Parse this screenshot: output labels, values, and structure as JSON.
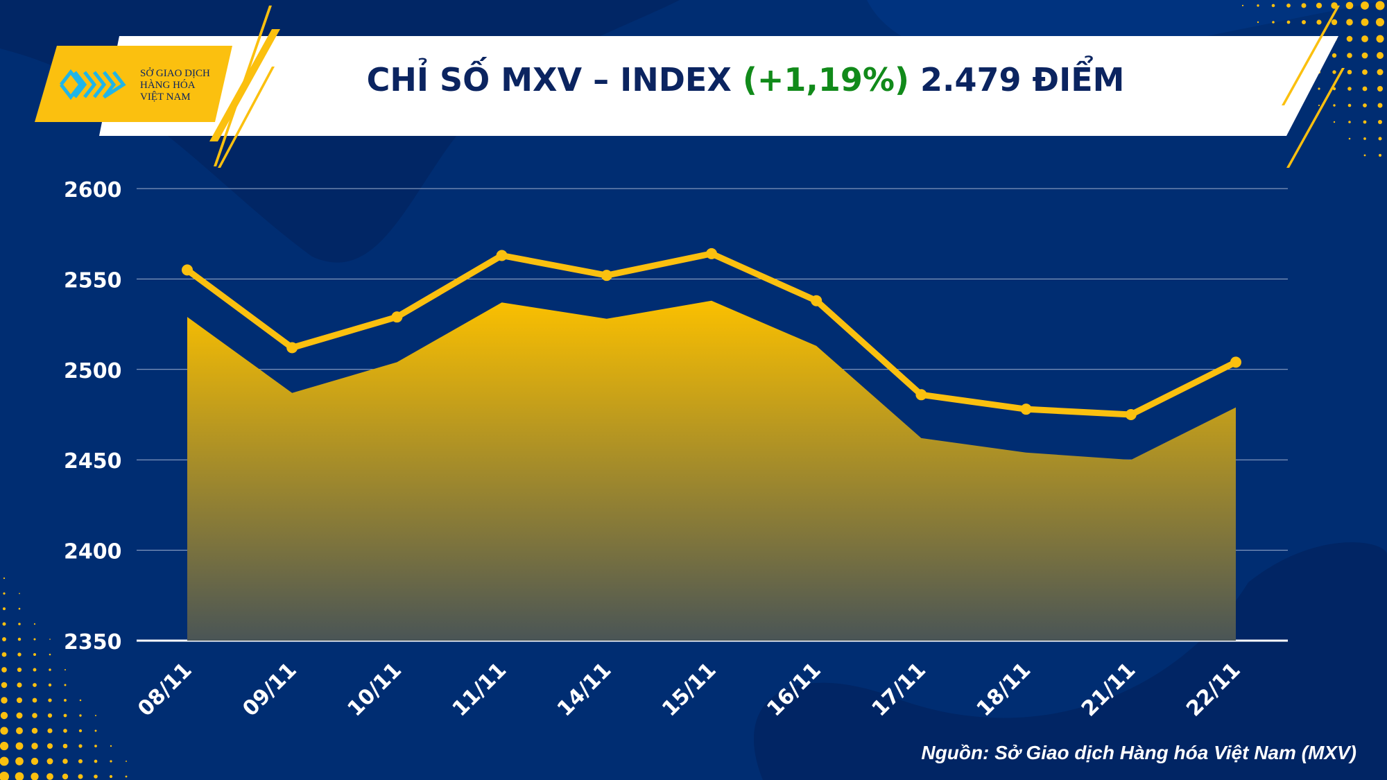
{
  "header": {
    "title_prefix": "CHỈ SỐ MXV – INDEX",
    "title_change": "(+1,19%)",
    "title_suffix": "2.479 ĐIỂM",
    "logo_lines": [
      "SỞ GIAO DỊCH",
      "HÀNG HÓA",
      "VIỆT NAM"
    ]
  },
  "source": "Nguồn: Sở Giao dịch Hàng hóa Việt Nam (MXV)",
  "colors": {
    "background": "#002d72",
    "accent": "#fbc00f",
    "change_positive": "#118a1a",
    "title": "#0b2460"
  },
  "chart_data": {
    "type": "area",
    "title": "CHỈ SỐ MXV – INDEX (+1,19%) 2.479 ĐIỂM",
    "categories": [
      "08/11",
      "09/11",
      "10/11",
      "11/11",
      "14/11",
      "15/11",
      "16/11",
      "17/11",
      "18/11",
      "21/11",
      "22/11"
    ],
    "series": [
      {
        "name": "MXV-Index",
        "kind": "area",
        "values": [
          2529,
          2487,
          2504,
          2537,
          2528,
          2538,
          2513,
          2462,
          2454,
          2450,
          2479
        ]
      },
      {
        "name": "MXV-Index line",
        "kind": "line",
        "values": [
          2555,
          2512,
          2529,
          2563,
          2552,
          2564,
          2538,
          2486,
          2478,
          2475,
          2504
        ]
      }
    ],
    "yticks": [
      "2600",
      "2550",
      "2500",
      "2450",
      "2400",
      "2350"
    ],
    "ylim": [
      2350,
      2600
    ],
    "grid": true,
    "xlabel": "",
    "ylabel": ""
  }
}
